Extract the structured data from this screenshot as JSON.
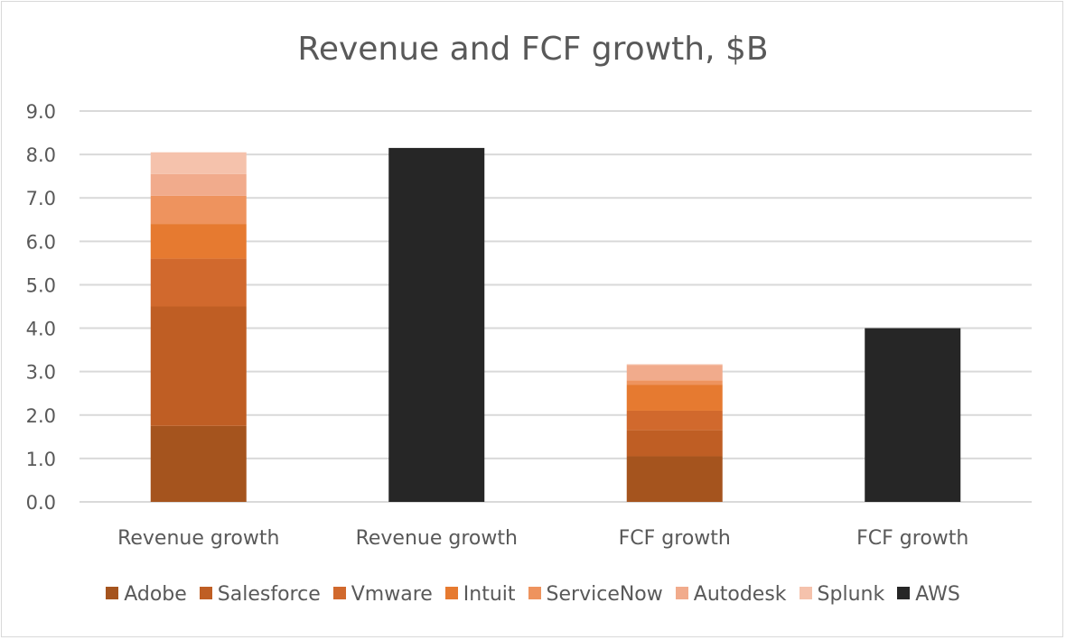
{
  "chart_data": {
    "type": "bar",
    "stacked": true,
    "title": "Revenue and FCF growth, $B",
    "categories": [
      "Revenue growth",
      "Revenue growth",
      "FCF growth",
      "FCF growth"
    ],
    "ylim": [
      0,
      9
    ],
    "yticks": [
      "0.0",
      "1.0",
      "2.0",
      "3.0",
      "4.0",
      "5.0",
      "6.0",
      "7.0",
      "8.0",
      "9.0"
    ],
    "grid": true,
    "legend_position": "bottom",
    "series": [
      {
        "name": "Adobe",
        "color": "#A5541E",
        "values": [
          1.75,
          0,
          1.05,
          0
        ]
      },
      {
        "name": "Salesforce",
        "color": "#BF5E24",
        "values": [
          2.75,
          0,
          0.6,
          0
        ]
      },
      {
        "name": "Vmware",
        "color": "#D1692D",
        "values": [
          1.1,
          0,
          0.45,
          0
        ]
      },
      {
        "name": "Intuit",
        "color": "#E67A30",
        "values": [
          0.8,
          0,
          0.6,
          0
        ]
      },
      {
        "name": "ServiceNow",
        "color": "#EE935E",
        "values": [
          0.65,
          0,
          0.1,
          0
        ]
      },
      {
        "name": "Autodesk",
        "color": "#F1AB8C",
        "values": [
          0.5,
          0,
          0.35,
          0
        ]
      },
      {
        "name": "Splunk",
        "color": "#F5C2AC",
        "values": [
          0.5,
          0,
          0.02,
          0
        ]
      },
      {
        "name": "AWS",
        "color": "#262626",
        "values": [
          0,
          8.15,
          0,
          4.0
        ]
      }
    ]
  }
}
